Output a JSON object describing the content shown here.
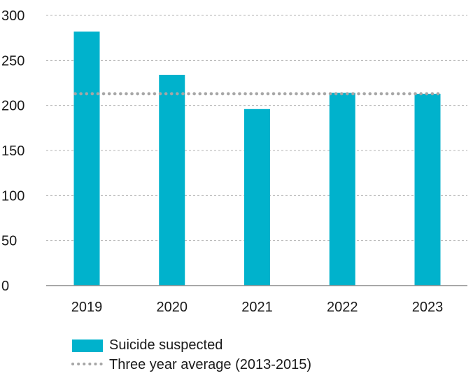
{
  "chart_data": {
    "type": "bar",
    "title": "",
    "xlabel": "",
    "ylabel": "",
    "categories": [
      "2019",
      "2020",
      "2021",
      "2022",
      "2023"
    ],
    "series": [
      {
        "name": "Suicide suspected",
        "type": "bar",
        "color": "#00b2cc",
        "values": [
          282,
          234,
          196,
          214,
          213
        ]
      },
      {
        "name": "Three year average (2013-2015)",
        "type": "line",
        "style": "dotted",
        "color": "#a6a6a6",
        "values": [
          213,
          213,
          213,
          213,
          213
        ]
      }
    ],
    "ylim": [
      0,
      300
    ],
    "yticks": [
      "0",
      "50",
      "100",
      "150",
      "200",
      "250",
      "300"
    ],
    "grid": "horizontal dashed",
    "legend_position": "bottom"
  }
}
